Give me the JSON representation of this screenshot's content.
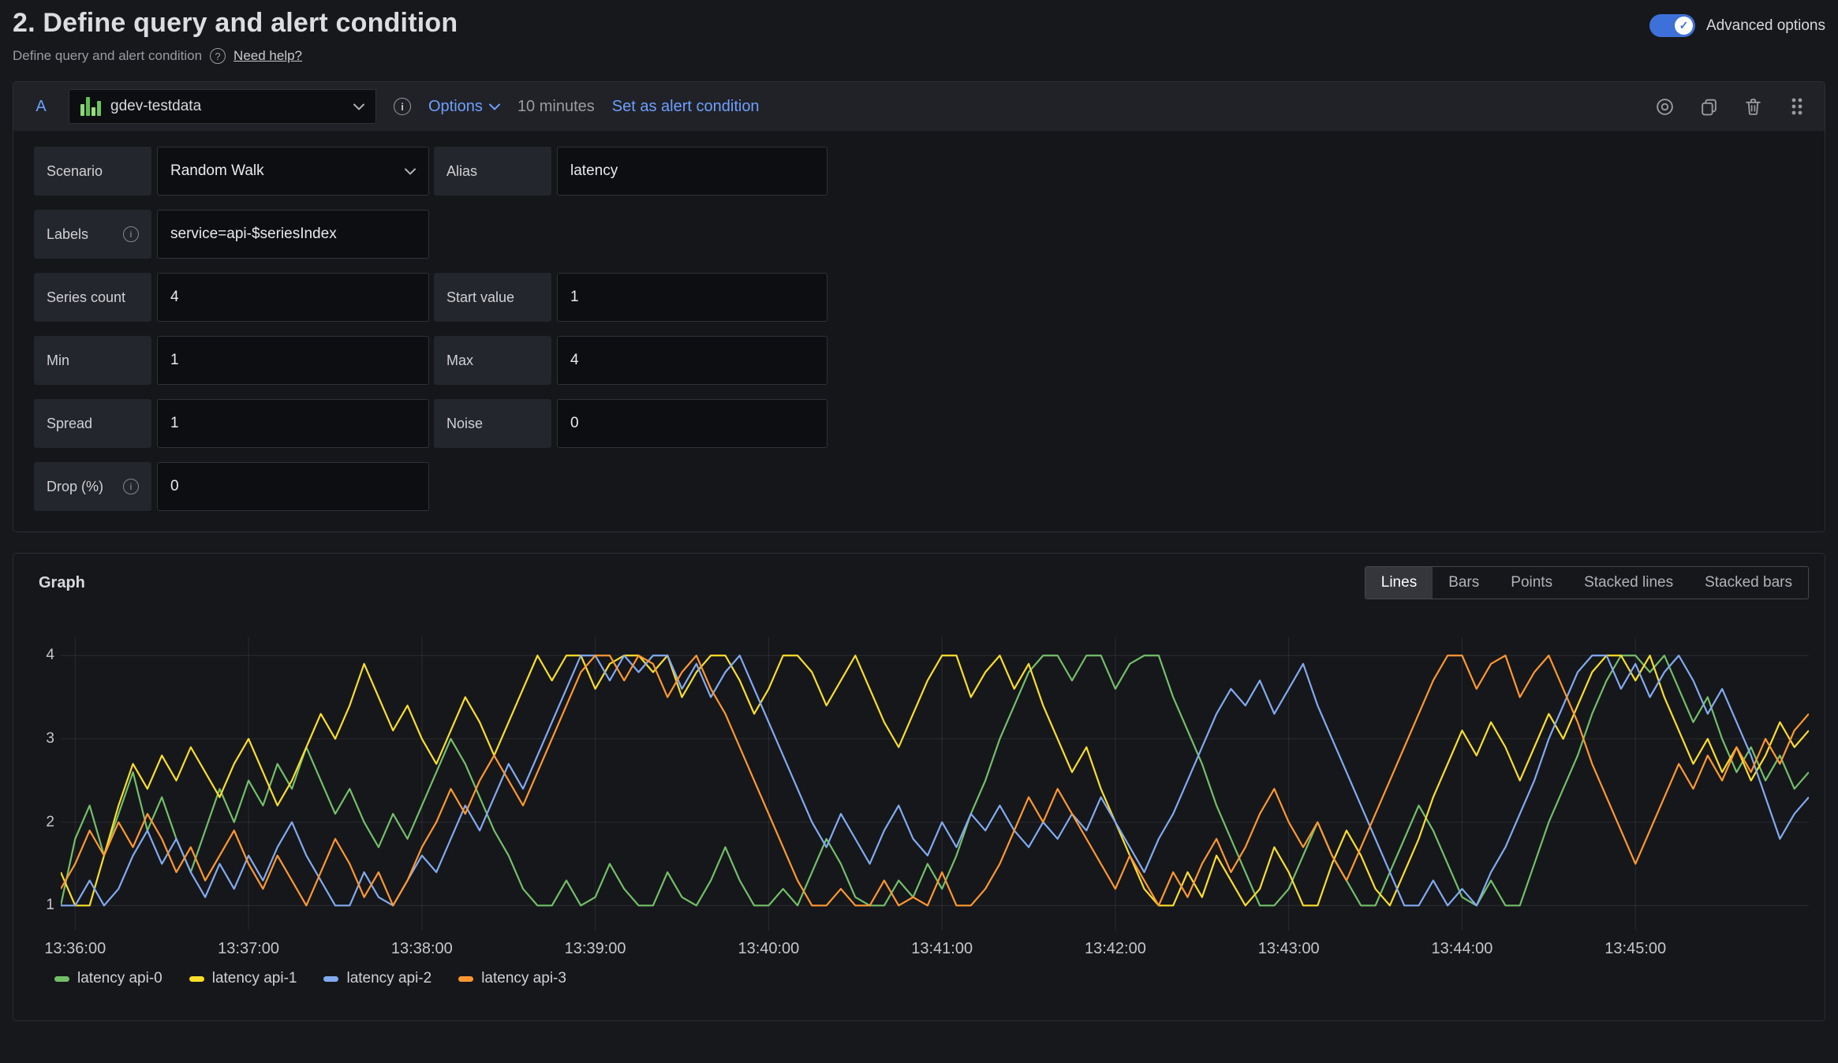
{
  "header": {
    "step_title": "2. Define query and alert condition",
    "subtitle": "Define query and alert condition",
    "help_link": "Need help?",
    "advanced_options_label": "Advanced options",
    "advanced_options_on": true
  },
  "query_editor": {
    "ref_id": "A",
    "datasource": {
      "name": "gdev-testdata",
      "icon": "testdata-bars-icon"
    },
    "options_label": "Options",
    "time_range": "10 minutes",
    "set_alert_condition_label": "Set as alert condition",
    "toolbar_icons": [
      "disable-query-icon",
      "duplicate-query-icon",
      "delete-query-icon",
      "drag-handle-icon"
    ],
    "rows": [
      {
        "left": {
          "label": "Scenario",
          "value": "Random Walk",
          "control": "select"
        },
        "right": {
          "label": "Alias",
          "value": "latency",
          "control": "input"
        }
      },
      {
        "left": {
          "label": "Labels",
          "info": true,
          "value": "service=api-$seriesIndex",
          "control": "input"
        },
        "right": null
      },
      {
        "left": {
          "label": "Series count",
          "value": "4",
          "control": "input"
        },
        "right": {
          "label": "Start value",
          "value": "1",
          "control": "input"
        }
      },
      {
        "left": {
          "label": "Min",
          "value": "1",
          "control": "input"
        },
        "right": {
          "label": "Max",
          "value": "4",
          "control": "input"
        }
      },
      {
        "left": {
          "label": "Spread",
          "value": "1",
          "control": "input"
        },
        "right": {
          "label": "Noise",
          "value": "0",
          "control": "input"
        }
      },
      {
        "left": {
          "label": "Drop (%)",
          "info": true,
          "value": "0",
          "control": "input"
        },
        "right": null
      }
    ]
  },
  "graph_panel": {
    "title": "Graph",
    "display_modes": [
      "Lines",
      "Bars",
      "Points",
      "Stacked lines",
      "Stacked bars"
    ],
    "active_mode": "Lines"
  },
  "colors": {
    "accent_blue": "#3d71d9",
    "link_blue": "#6e9fff",
    "panel_border": "#2c2e34",
    "grid_line": "rgba(204,210,219,0.11)",
    "ds_icon_bars": [
      "#8dd87b",
      "#5fbf4f",
      "#9ade7c",
      "#6cc95a"
    ]
  },
  "chart_data": {
    "type": "line",
    "title": "Graph",
    "xlabel": "",
    "ylabel": "",
    "grid": true,
    "legend_position": "bottom",
    "y_ticks": [
      1,
      2,
      3,
      4
    ],
    "ylim": [
      0.7,
      4.22
    ],
    "x_seconds_span": 605,
    "x_tick_seconds": [
      5,
      65,
      125,
      185,
      245,
      305,
      365,
      425,
      485,
      545
    ],
    "x_tick_labels": [
      "13:36:00",
      "13:37:00",
      "13:38:00",
      "13:39:00",
      "13:40:00",
      "13:41:00",
      "13:42:00",
      "13:43:00",
      "13:44:00",
      "13:45:00"
    ],
    "series": [
      {
        "name": "latency api-0",
        "color": "#73BF69",
        "values": [
          1.0,
          1.8,
          2.2,
          1.6,
          2.1,
          2.6,
          1.9,
          2.3,
          1.8,
          1.4,
          1.9,
          2.4,
          2.0,
          2.5,
          2.2,
          2.7,
          2.4,
          2.9,
          2.5,
          2.1,
          2.4,
          2.0,
          1.7,
          2.1,
          1.8,
          2.2,
          2.6,
          3.0,
          2.7,
          2.3,
          1.9,
          1.6,
          1.2,
          1.0,
          1.0,
          1.3,
          1.0,
          1.1,
          1.5,
          1.2,
          1.0,
          1.0,
          1.4,
          1.1,
          1.0,
          1.3,
          1.7,
          1.3,
          1.0,
          1.0,
          1.2,
          1.0,
          1.4,
          1.8,
          1.5,
          1.1,
          1.0,
          1.0,
          1.3,
          1.1,
          1.5,
          1.2,
          1.6,
          2.1,
          2.5,
          3.0,
          3.4,
          3.8,
          4.0,
          4.0,
          3.7,
          4.0,
          4.0,
          3.6,
          3.9,
          4.0,
          4.0,
          3.5,
          3.1,
          2.7,
          2.2,
          1.8,
          1.4,
          1.0,
          1.0,
          1.2,
          1.6,
          2.0,
          1.6,
          1.3,
          1.0,
          1.0,
          1.4,
          1.8,
          2.2,
          1.9,
          1.5,
          1.1,
          1.0,
          1.3,
          1.0,
          1.0,
          1.5,
          2.0,
          2.4,
          2.8,
          3.3,
          3.7,
          4.0,
          4.0,
          3.8,
          4.0,
          3.6,
          3.2,
          3.5,
          3.0,
          2.6,
          2.9,
          2.5,
          2.8,
          2.4,
          2.6
        ]
      },
      {
        "name": "latency api-1",
        "color": "#FADE2A",
        "values": [
          1.4,
          1.0,
          1.0,
          1.6,
          2.2,
          2.7,
          2.4,
          2.8,
          2.5,
          2.9,
          2.6,
          2.3,
          2.7,
          3.0,
          2.6,
          2.2,
          2.5,
          2.9,
          3.3,
          3.0,
          3.4,
          3.9,
          3.5,
          3.1,
          3.4,
          3.0,
          2.7,
          3.1,
          3.5,
          3.2,
          2.8,
          3.2,
          3.6,
          4.0,
          3.7,
          4.0,
          4.0,
          3.6,
          3.9,
          4.0,
          4.0,
          3.8,
          4.0,
          3.5,
          3.8,
          4.0,
          4.0,
          3.7,
          3.3,
          3.6,
          4.0,
          4.0,
          3.8,
          3.4,
          3.7,
          4.0,
          3.6,
          3.2,
          2.9,
          3.3,
          3.7,
          4.0,
          4.0,
          3.5,
          3.8,
          4.0,
          3.6,
          3.9,
          3.4,
          3.0,
          2.6,
          2.9,
          2.4,
          2.0,
          1.6,
          1.2,
          1.0,
          1.0,
          1.4,
          1.1,
          1.6,
          1.3,
          1.0,
          1.2,
          1.7,
          1.4,
          1.0,
          1.0,
          1.5,
          1.9,
          1.6,
          1.2,
          1.0,
          1.4,
          1.8,
          2.3,
          2.7,
          3.1,
          2.8,
          3.2,
          2.9,
          2.5,
          2.9,
          3.3,
          3.0,
          3.4,
          3.8,
          4.0,
          4.0,
          3.7,
          4.0,
          3.5,
          3.1,
          2.7,
          3.0,
          2.6,
          2.9,
          2.5,
          2.8,
          3.2,
          2.9,
          3.1
        ]
      },
      {
        "name": "latency api-2",
        "color": "#82AAF0",
        "values": [
          1.0,
          1.0,
          1.3,
          1.0,
          1.2,
          1.6,
          1.9,
          1.5,
          1.8,
          1.4,
          1.1,
          1.5,
          1.2,
          1.6,
          1.3,
          1.7,
          2.0,
          1.6,
          1.3,
          1.0,
          1.0,
          1.4,
          1.1,
          1.0,
          1.3,
          1.6,
          1.4,
          1.8,
          2.2,
          1.9,
          2.3,
          2.7,
          2.4,
          2.8,
          3.2,
          3.6,
          4.0,
          4.0,
          3.7,
          4.0,
          3.8,
          4.0,
          4.0,
          3.6,
          3.9,
          3.5,
          3.8,
          4.0,
          3.6,
          3.2,
          2.8,
          2.4,
          2.0,
          1.7,
          2.1,
          1.8,
          1.5,
          1.9,
          2.2,
          1.8,
          1.6,
          2.0,
          1.7,
          2.1,
          1.9,
          2.2,
          1.9,
          1.7,
          2.0,
          1.8,
          2.1,
          1.9,
          2.3,
          2.0,
          1.7,
          1.4,
          1.8,
          2.1,
          2.5,
          2.9,
          3.3,
          3.6,
          3.4,
          3.7,
          3.3,
          3.6,
          3.9,
          3.4,
          3.0,
          2.6,
          2.2,
          1.8,
          1.4,
          1.0,
          1.0,
          1.3,
          1.0,
          1.2,
          1.0,
          1.4,
          1.7,
          2.1,
          2.5,
          3.0,
          3.4,
          3.8,
          4.0,
          4.0,
          3.6,
          3.9,
          3.5,
          3.8,
          4.0,
          3.7,
          3.3,
          3.6,
          3.2,
          2.8,
          2.3,
          1.8,
          2.1,
          2.3
        ]
      },
      {
        "name": "latency api-3",
        "color": "#FF9830",
        "values": [
          1.2,
          1.5,
          1.9,
          1.6,
          2.0,
          1.7,
          2.1,
          1.8,
          1.4,
          1.7,
          1.3,
          1.6,
          1.9,
          1.5,
          1.2,
          1.6,
          1.3,
          1.0,
          1.4,
          1.8,
          1.5,
          1.1,
          1.4,
          1.0,
          1.3,
          1.7,
          2.0,
          2.4,
          2.1,
          2.5,
          2.8,
          2.5,
          2.2,
          2.6,
          3.0,
          3.4,
          3.8,
          4.0,
          4.0,
          3.7,
          4.0,
          3.9,
          3.5,
          3.8,
          4.0,
          3.6,
          3.3,
          2.9,
          2.5,
          2.1,
          1.7,
          1.3,
          1.0,
          1.0,
          1.2,
          1.0,
          1.0,
          1.3,
          1.0,
          1.1,
          1.0,
          1.4,
          1.0,
          1.0,
          1.2,
          1.5,
          1.9,
          2.3,
          2.0,
          2.4,
          2.1,
          1.8,
          1.5,
          1.2,
          1.6,
          1.3,
          1.0,
          1.4,
          1.1,
          1.5,
          1.8,
          1.4,
          1.7,
          2.1,
          2.4,
          2.0,
          1.7,
          2.0,
          1.6,
          1.3,
          1.7,
          2.1,
          2.5,
          2.9,
          3.3,
          3.7,
          4.0,
          4.0,
          3.6,
          3.9,
          4.0,
          3.5,
          3.8,
          4.0,
          3.6,
          3.2,
          2.7,
          2.3,
          1.9,
          1.5,
          1.9,
          2.3,
          2.7,
          2.4,
          2.8,
          2.5,
          2.9,
          2.6,
          3.0,
          2.7,
          3.1,
          3.3
        ]
      }
    ]
  }
}
